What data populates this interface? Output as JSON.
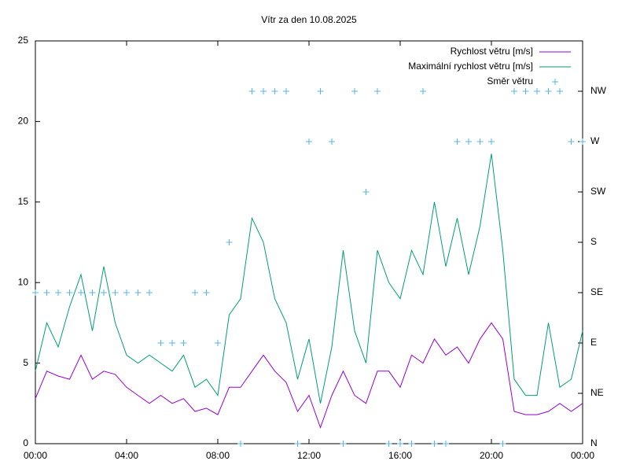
{
  "chart_data": {
    "type": "line",
    "title": "Vítr za den 10.08.2025",
    "x": [
      0,
      0.5,
      1,
      1.5,
      2,
      2.5,
      3,
      3.5,
      4,
      4.5,
      5,
      5.5,
      6,
      6.5,
      7,
      7.5,
      8,
      8.5,
      9,
      9.5,
      10,
      10.5,
      11,
      11.5,
      12,
      12.5,
      13,
      13.5,
      14,
      14.5,
      15,
      15.5,
      16,
      16.5,
      17,
      17.5,
      18,
      18.5,
      19,
      19.5,
      20,
      20.5,
      21,
      21.5,
      22,
      22.5,
      23,
      23.5,
      24
    ],
    "series": [
      {
        "name": "Rychlost větru [m/s]",
        "color": "#9400d3",
        "style": "lines",
        "values": [
          2.8,
          4.5,
          4.2,
          4.0,
          5.5,
          4.0,
          4.5,
          4.3,
          3.5,
          3.0,
          2.5,
          3.0,
          2.5,
          2.8,
          2.0,
          2.2,
          1.8,
          3.5,
          3.5,
          4.5,
          5.5,
          4.5,
          3.8,
          2.0,
          3.0,
          1.0,
          3.0,
          4.5,
          3.0,
          2.5,
          4.5,
          4.5,
          3.5,
          5.5,
          5.0,
          6.5,
          5.5,
          6.0,
          5.0,
          6.5,
          7.5,
          6.5,
          2.0,
          1.8,
          1.8,
          2.0,
          2.5,
          2.0,
          2.5
        ]
      },
      {
        "name": "Maximální rychlost větru [m/s]",
        "color": "#009e73",
        "style": "lines",
        "values": [
          4.5,
          7.5,
          6.0,
          8.5,
          10.5,
          7.0,
          11.0,
          7.5,
          5.5,
          5.0,
          5.5,
          5.0,
          4.5,
          5.5,
          3.5,
          4.0,
          3.0,
          8.0,
          9.0,
          14.0,
          12.5,
          9.0,
          7.5,
          4.0,
          6.5,
          2.5,
          6.0,
          12.0,
          7.0,
          5.0,
          12.0,
          10.0,
          9.0,
          12.0,
          10.5,
          15.0,
          11.0,
          14.0,
          10.5,
          13.5,
          18.0,
          12.0,
          4.0,
          3.0,
          3.0,
          7.5,
          3.5,
          4.0,
          7.0
        ]
      },
      {
        "name": "Směr větru",
        "color": "#56b4e9",
        "style": "points",
        "axis": "y2",
        "values": [
          3,
          3,
          3,
          3,
          3,
          3,
          3,
          3,
          3,
          3,
          3,
          2,
          2,
          2,
          3,
          3,
          2,
          4,
          0,
          7,
          7,
          7,
          7,
          0,
          6,
          7,
          6,
          0,
          7,
          5,
          7,
          0,
          0,
          0,
          7,
          0,
          0,
          6,
          6,
          6,
          6,
          0,
          7,
          7,
          7,
          7,
          7,
          6,
          6
        ]
      }
    ],
    "xlim": [
      0,
      24
    ],
    "xticks": [
      {
        "value": 0,
        "label": "00:00"
      },
      {
        "value": 4,
        "label": "04:00"
      },
      {
        "value": 8,
        "label": "08:00"
      },
      {
        "value": 12,
        "label": "12:00"
      },
      {
        "value": 16,
        "label": "16:00"
      },
      {
        "value": 20,
        "label": "20:00"
      },
      {
        "value": 24,
        "label": "00:00"
      }
    ],
    "ylim": [
      0,
      25
    ],
    "yticks": [
      0,
      5,
      10,
      15,
      20,
      25
    ],
    "y2lim": [
      0,
      8
    ],
    "y2ticks": [
      {
        "value": 0,
        "label": "N"
      },
      {
        "value": 1,
        "label": "NE"
      },
      {
        "value": 2,
        "label": "E"
      },
      {
        "value": 3,
        "label": "SE"
      },
      {
        "value": 4,
        "label": "S"
      },
      {
        "value": 5,
        "label": "SW"
      },
      {
        "value": 6,
        "label": "W"
      },
      {
        "value": 7,
        "label": "NW"
      }
    ],
    "legend": "top-right",
    "grid": false
  }
}
